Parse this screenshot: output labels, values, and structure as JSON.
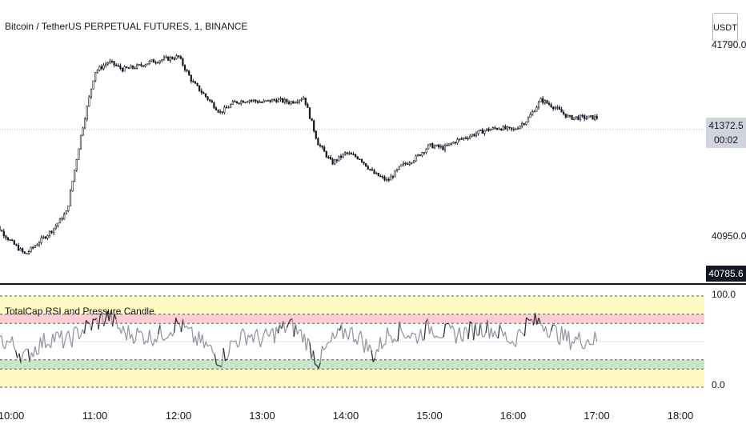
{
  "header": {
    "symbol_title": "Bitcoin / TetherUS PERPETUAL FUTURES, 1, BINANCE",
    "currency": "USDT"
  },
  "price_axis": {
    "top_partial": "41790.0",
    "last_price": "41372.5",
    "countdown": "00:02",
    "mid_label": "40950.0",
    "low_badge": "40785.6"
  },
  "indicator": {
    "title": "TotalCap RSI and Pressure Candle",
    "upper_label": "100.0",
    "lower_label": "0.0"
  },
  "time_axis": {
    "labels": [
      "10:00",
      "11:00",
      "12:00",
      "13:00",
      "14:00",
      "15:00",
      "16:00",
      "17:00",
      "18:00"
    ]
  },
  "colors": {
    "candle": "#131722",
    "rsi_gray": "#9598a1",
    "band_yellow": "#fff9c4",
    "band_red": "#ffcdd2",
    "band_green": "#c8e6c9"
  },
  "chart_data": [
    {
      "type": "line",
      "title": "Bitcoin / TetherUS PERPETUAL FUTURES, 1, BINANCE",
      "x": [
        "09:50",
        "10:00",
        "10:10",
        "10:20",
        "10:30",
        "10:40",
        "10:50",
        "11:00",
        "11:10",
        "11:20",
        "11:30",
        "11:40",
        "11:50",
        "12:00",
        "12:10",
        "12:20",
        "12:30",
        "12:40",
        "12:50",
        "13:00",
        "13:10",
        "13:20",
        "13:30",
        "13:40",
        "13:50",
        "14:00",
        "14:10",
        "14:20",
        "14:30",
        "14:40",
        "14:50",
        "15:00",
        "15:10",
        "15:20",
        "15:30",
        "15:40",
        "15:50",
        "16:00",
        "16:10",
        "16:20",
        "16:30",
        "16:40"
      ],
      "series": [
        {
          "values": [
            40990,
            40930,
            40880,
            40930,
            40980,
            41050,
            41350,
            41600,
            41640,
            41610,
            41620,
            41640,
            41650,
            41660,
            41560,
            41500,
            41440,
            41480,
            41490,
            41480,
            41490,
            41480,
            41500,
            41320,
            41240,
            41280,
            41260,
            41200,
            41170,
            41230,
            41260,
            41310,
            41300,
            41330,
            41350,
            41370,
            41380,
            41370,
            41410,
            41490,
            41460,
            41420
          ]
        }
      ],
      "yticks": [
        "40950.0",
        "41372.5"
      ]
    },
    {
      "type": "line",
      "title": "TotalCap RSI and Pressure Candle",
      "x": [
        "09:50",
        "10:00",
        "10:10",
        "10:20",
        "10:30",
        "10:40",
        "10:50",
        "11:00",
        "11:10",
        "11:20",
        "11:30",
        "11:40",
        "11:50",
        "12:00",
        "12:10",
        "12:20",
        "12:30",
        "12:40",
        "12:50",
        "13:00",
        "13:10",
        "13:20",
        "13:30",
        "13:40",
        "13:50",
        "14:00",
        "14:10",
        "14:20",
        "14:30",
        "14:40",
        "14:50",
        "15:00",
        "15:10",
        "15:20",
        "15:30",
        "15:40",
        "15:50",
        "16:00",
        "16:10",
        "16:20",
        "16:30",
        "16:40"
      ],
      "series": [
        {
          "values": [
            52,
            48,
            32,
            47,
            55,
            50,
            62,
            70,
            78,
            60,
            58,
            55,
            60,
            70,
            55,
            45,
            30,
            50,
            58,
            52,
            60,
            68,
            55,
            28,
            50,
            62,
            55,
            35,
            58,
            62,
            55,
            66,
            60,
            58,
            62,
            66,
            60,
            50,
            70,
            72,
            60,
            52
          ]
        }
      ],
      "ylim": [
        0,
        100
      ],
      "levels": [
        0,
        20,
        30,
        70,
        80,
        100
      ]
    }
  ]
}
